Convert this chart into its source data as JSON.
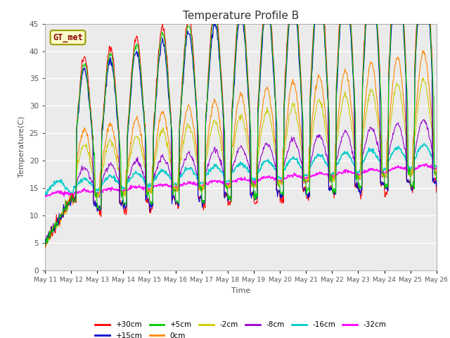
{
  "title": "Temperature Profile B",
  "xlabel": "Time",
  "ylabel": "Temperature(C)",
  "ylim": [
    0,
    45
  ],
  "annotation": "GT_met",
  "legend_entries": [
    "+30cm",
    "+15cm",
    "+5cm",
    "0cm",
    "-2cm",
    "-8cm",
    "-16cm",
    "-32cm"
  ],
  "legend_colors": [
    "#ff0000",
    "#0000cd",
    "#00cc00",
    "#ff8800",
    "#cccc00",
    "#9900cc",
    "#00cccc",
    "#ff00ff"
  ],
  "background_color": "#ebebeb",
  "x_tick_labels": [
    "May 11",
    "May 12",
    "May 13",
    "May 14",
    "May 15",
    "May 16",
    "May 17",
    "May 18",
    "May 19",
    "May 20",
    "May 21",
    "May 22",
    "May 23",
    "May 24",
    "May 25",
    "May 26"
  ],
  "num_days": 15
}
